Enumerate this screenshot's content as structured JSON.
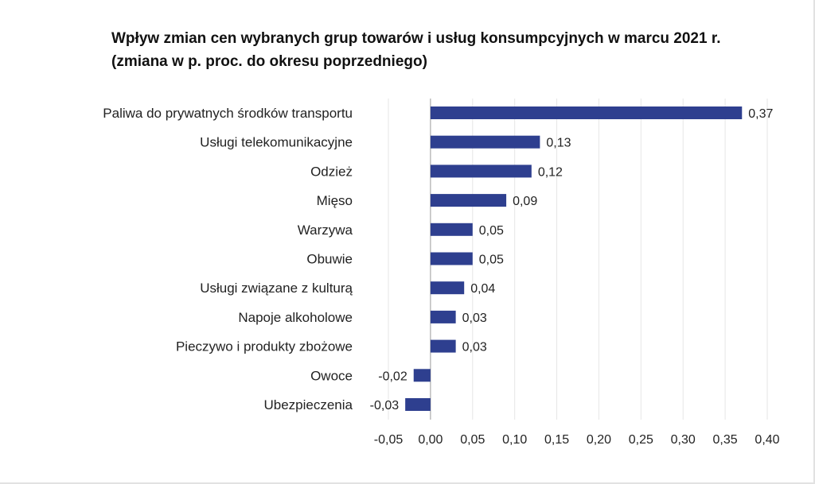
{
  "chart_data": {
    "type": "bar",
    "orientation": "horizontal",
    "title": "Wpływ zmian cen wybranych grup towarów i usług konsumpcyjnych w marcu 2021 r.",
    "subtitle": "(zmiana w p. proc. do okresu poprzedniego)",
    "categories": [
      "Paliwa do prywatnych środków transportu",
      "Usługi telekomunikacyjne",
      "Odzież",
      "Mięso",
      "Warzywa",
      "Obuwie",
      "Usługi związane z kulturą",
      "Napoje alkoholowe",
      "Pieczywo i produkty zbożowe",
      "Owoce",
      "Ubezpieczenia"
    ],
    "values": [
      0.37,
      0.13,
      0.12,
      0.09,
      0.05,
      0.05,
      0.04,
      0.03,
      0.03,
      -0.02,
      -0.03
    ],
    "value_labels": [
      "0,37",
      "0,13",
      "0,12",
      "0,09",
      "0,05",
      "0,05",
      "0,04",
      "0,03",
      "0,03",
      "-0,02",
      "-0,03"
    ],
    "xlim": [
      -0.05,
      0.4
    ],
    "xticks": [
      -0.05,
      0.0,
      0.05,
      0.1,
      0.15,
      0.2,
      0.25,
      0.3,
      0.35,
      0.4
    ],
    "xtick_labels": [
      "-0,05",
      "0,00",
      "0,05",
      "0,10",
      "0,15",
      "0,20",
      "0,25",
      "0,30",
      "0,35",
      "0,40"
    ],
    "grid": true,
    "legend": false,
    "bar_color": "#2e3f8f"
  }
}
